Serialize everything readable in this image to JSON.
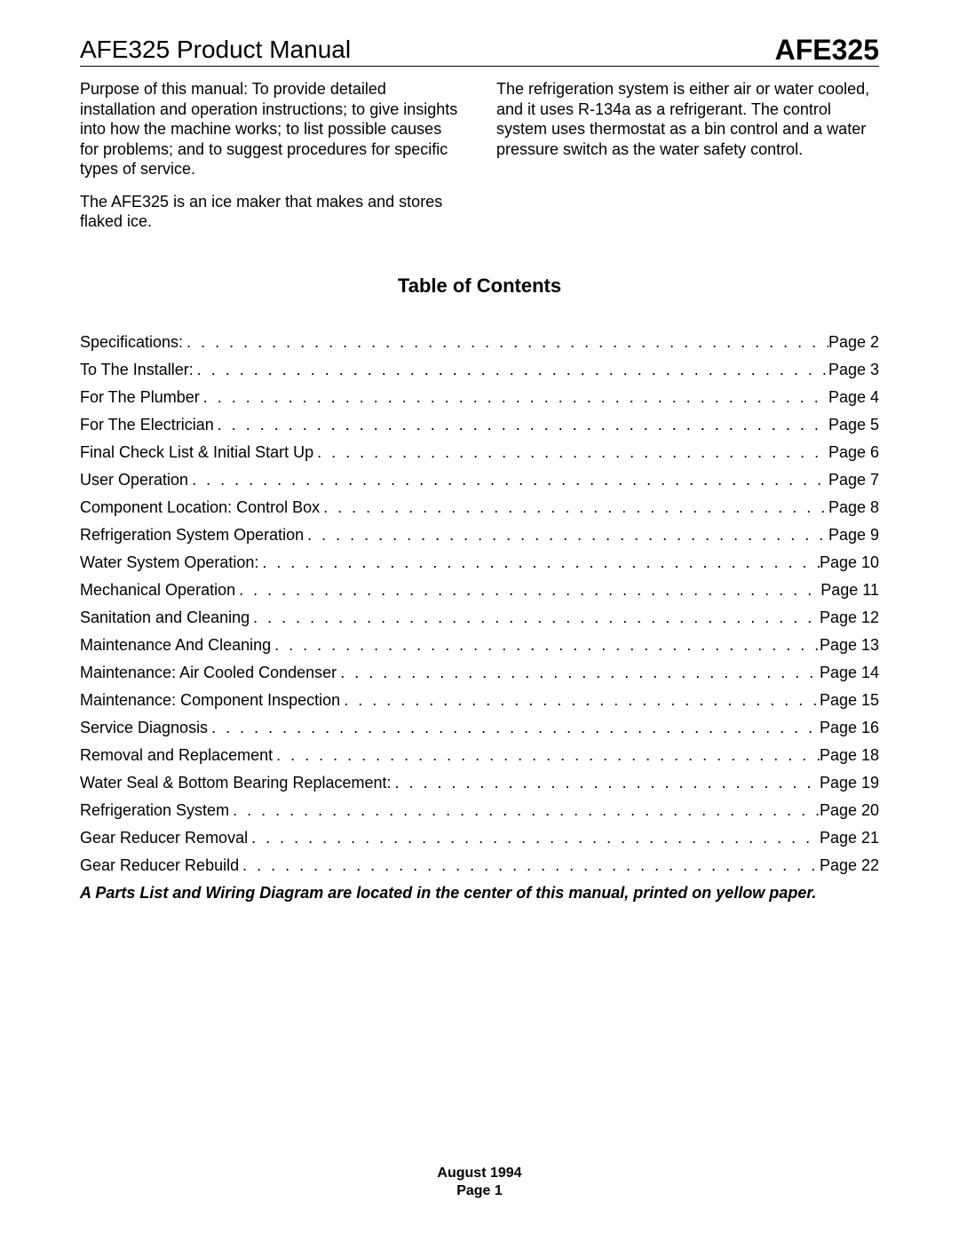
{
  "header": {
    "doc_title": "AFE325 Product Manual",
    "model": "AFE325"
  },
  "intro": {
    "left_paras": [
      "Purpose of this manual: To provide detailed installation and operation instructions; to give insights into how the machine works; to list possible causes for problems; and to suggest procedures for specific types of service.",
      "The AFE325 is an ice maker that makes and stores flaked ice."
    ],
    "right_paras": [
      "The refrigeration system is either air or water cooled, and it uses R-134a as a refrigerant. The control system uses thermostat as a bin control and a water pressure switch as the water safety control."
    ]
  },
  "toc": {
    "heading": "Table of Contents",
    "page_label": "Page",
    "entries": [
      {
        "title": "Specifications:",
        "page": "2"
      },
      {
        "title": "To The Installer:",
        "page": "3"
      },
      {
        "title": "For The Plumber",
        "page": "4"
      },
      {
        "title": "For The Electrician",
        "page": "5"
      },
      {
        "title": "Final Check List & Initial Start Up",
        "page": "6"
      },
      {
        "title": "User Operation",
        "page": "7"
      },
      {
        "title": "Component Location: Control Box",
        "page": "8"
      },
      {
        "title": "Refrigeration System Operation",
        "page": "9"
      },
      {
        "title": "Water System Operation:",
        "page": "10"
      },
      {
        "title": "Mechanical Operation",
        "page": "11"
      },
      {
        "title": "Sanitation and Cleaning",
        "page": "12"
      },
      {
        "title": "Maintenance And Cleaning",
        "page": "13"
      },
      {
        "title": "Maintenance: Air Cooled Condenser",
        "page": "14"
      },
      {
        "title": "Maintenance: Component Inspection",
        "page": "15"
      },
      {
        "title": "Service Diagnosis",
        "page": "16"
      },
      {
        "title": "Removal and Replacement",
        "page": "18"
      },
      {
        "title": "Water Seal & Bottom Bearing Replacement:",
        "page": "19"
      },
      {
        "title": "Refrigeration System",
        "page": "20"
      },
      {
        "title": "Gear Reducer Removal",
        "page": "21"
      },
      {
        "title": "Gear Reducer Rebuild",
        "page": "22"
      }
    ],
    "note": "A Parts List and Wiring Diagram are located in the center of this manual, printed on yellow paper."
  },
  "footer": {
    "date": "August 1994",
    "page_label": "Page 1"
  }
}
